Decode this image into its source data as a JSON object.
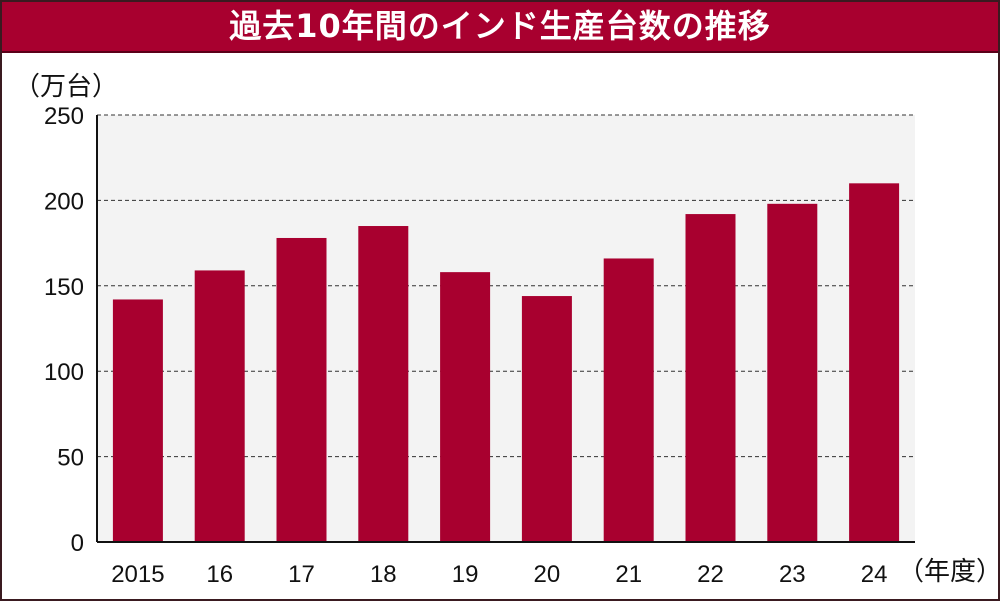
{
  "chart_data": {
    "type": "bar",
    "title": "過去10年間のインド生産台数の推移",
    "ylabel": "（万台）",
    "xlabel": "（年度）",
    "categories": [
      "2015",
      "16",
      "17",
      "18",
      "19",
      "20",
      "21",
      "22",
      "23",
      "24"
    ],
    "values": [
      142,
      159,
      178,
      185,
      158,
      144,
      166,
      192,
      198,
      210
    ],
    "ylim": [
      0,
      250
    ],
    "yticks": [
      0,
      50,
      100,
      150,
      200,
      250
    ],
    "grid": true,
    "bar_color": "#a8002f",
    "plot_bg": "#f3f3f3"
  }
}
